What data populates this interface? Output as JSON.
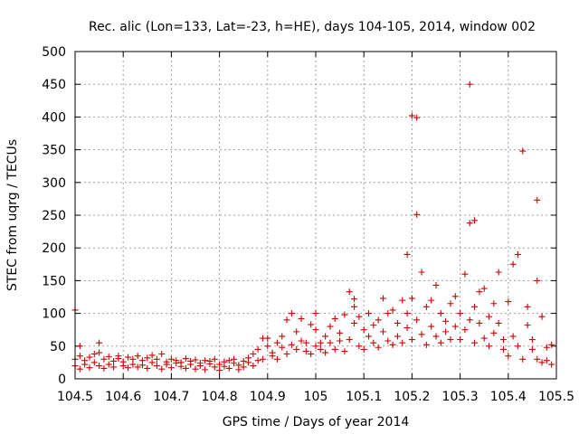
{
  "chart_data": {
    "type": "scatter",
    "title": "Rec. alic (Lon=133, Lat=-23, h=HE), days 104-105, 2014, window 002",
    "xlabel": "GPS time / Days of year 2014",
    "ylabel": "STEC from uqrg / TECUs",
    "xlim": [
      104.5,
      105.5
    ],
    "ylim": [
      0,
      500
    ],
    "xticks": [
      104.5,
      104.6,
      104.7,
      104.8,
      104.9,
      105,
      105.1,
      105.2,
      105.3,
      105.4,
      105.5
    ],
    "xtick_labels": [
      "104.5",
      "104.6",
      "104.7",
      "104.8",
      "104.9",
      "105",
      "105.1",
      "105.2",
      "105.3",
      "105.4",
      "105.5"
    ],
    "yticks": [
      0,
      50,
      100,
      150,
      200,
      250,
      300,
      350,
      400,
      450,
      500
    ],
    "ytick_labels": [
      "0",
      "50",
      "100",
      "150",
      "200",
      "250",
      "300",
      "350",
      "400",
      "450",
      "500"
    ],
    "grid": true,
    "marker": "+",
    "color": "#d00000",
    "series": [
      {
        "points": [
          [
            104.5,
            105
          ],
          [
            104.5,
            30
          ],
          [
            104.5,
            20
          ],
          [
            104.51,
            35
          ],
          [
            104.51,
            15
          ],
          [
            104.51,
            50
          ],
          [
            104.52,
            28
          ],
          [
            104.52,
            22
          ],
          [
            104.53,
            33
          ],
          [
            104.53,
            17
          ],
          [
            104.54,
            38
          ],
          [
            104.54,
            25
          ],
          [
            104.55,
            20
          ],
          [
            104.55,
            40
          ],
          [
            104.55,
            55
          ],
          [
            104.56,
            30
          ],
          [
            104.56,
            16
          ],
          [
            104.57,
            34
          ],
          [
            104.57,
            22
          ],
          [
            104.58,
            27
          ],
          [
            104.58,
            18
          ],
          [
            104.59,
            31
          ],
          [
            104.59,
            35
          ],
          [
            104.6,
            20
          ],
          [
            104.6,
            26
          ],
          [
            104.61,
            33
          ],
          [
            104.61,
            17
          ],
          [
            104.62,
            30
          ],
          [
            104.62,
            22
          ],
          [
            104.63,
            35
          ],
          [
            104.63,
            18
          ],
          [
            104.64,
            28
          ],
          [
            104.64,
            21
          ],
          [
            104.65,
            32
          ],
          [
            104.65,
            16
          ],
          [
            104.66,
            36
          ],
          [
            104.66,
            25
          ],
          [
            104.67,
            20
          ],
          [
            104.67,
            30
          ],
          [
            104.68,
            38
          ],
          [
            104.68,
            15
          ],
          [
            104.69,
            26
          ],
          [
            104.69,
            22
          ],
          [
            104.7,
            30
          ],
          [
            104.7,
            17
          ],
          [
            104.71,
            24
          ],
          [
            104.71,
            28
          ],
          [
            104.72,
            19
          ],
          [
            104.72,
            25
          ],
          [
            104.73,
            31
          ],
          [
            104.73,
            16
          ],
          [
            104.74,
            27
          ],
          [
            104.74,
            22
          ],
          [
            104.75,
            29
          ],
          [
            104.75,
            15
          ],
          [
            104.76,
            24
          ],
          [
            104.76,
            20
          ],
          [
            104.77,
            28
          ],
          [
            104.77,
            14
          ],
          [
            104.78,
            23
          ],
          [
            104.78,
            27
          ],
          [
            104.79,
            18
          ],
          [
            104.79,
            30
          ],
          [
            104.8,
            22
          ],
          [
            104.8,
            13
          ],
          [
            104.81,
            26
          ],
          [
            104.81,
            19
          ],
          [
            104.82,
            28
          ],
          [
            104.82,
            16
          ],
          [
            104.83,
            24
          ],
          [
            104.83,
            30
          ],
          [
            104.84,
            14
          ],
          [
            104.84,
            21
          ],
          [
            104.85,
            27
          ],
          [
            104.85,
            18
          ],
          [
            104.86,
            32
          ],
          [
            104.86,
            25
          ],
          [
            104.87,
            20
          ],
          [
            104.87,
            38
          ],
          [
            104.88,
            28
          ],
          [
            104.88,
            45
          ],
          [
            104.89,
            62
          ],
          [
            104.89,
            30
          ],
          [
            104.9,
            50
          ],
          [
            104.9,
            62
          ],
          [
            104.91,
            35
          ],
          [
            104.91,
            40
          ],
          [
            104.92,
            55
          ],
          [
            104.92,
            30
          ],
          [
            104.93,
            48
          ],
          [
            104.93,
            65
          ],
          [
            104.94,
            90
          ],
          [
            104.94,
            38
          ],
          [
            104.95,
            52
          ],
          [
            104.95,
            100
          ],
          [
            104.96,
            45
          ],
          [
            104.96,
            72
          ],
          [
            104.97,
            58
          ],
          [
            104.97,
            92
          ],
          [
            104.98,
            42
          ],
          [
            104.98,
            55
          ],
          [
            104.99,
            83
          ],
          [
            104.99,
            38
          ],
          [
            105,
            50
          ],
          [
            105,
            75
          ],
          [
            105,
            100
          ],
          [
            105.01,
            55
          ],
          [
            105.01,
            45
          ],
          [
            105.02,
            65
          ],
          [
            105.02,
            40
          ],
          [
            105.03,
            80
          ],
          [
            105.03,
            55
          ],
          [
            105.04,
            92
          ],
          [
            105.04,
            45
          ],
          [
            105.05,
            70
          ],
          [
            105.05,
            58
          ],
          [
            105.06,
            98
          ],
          [
            105.06,
            42
          ],
          [
            105.07,
            133
          ],
          [
            105.07,
            60
          ],
          [
            105.08,
            122
          ],
          [
            105.08,
            85
          ],
          [
            105.08,
            110
          ],
          [
            105.09,
            50
          ],
          [
            105.09,
            95
          ],
          [
            105.1,
            75
          ],
          [
            105.1,
            45
          ],
          [
            105.11,
            65
          ],
          [
            105.11,
            100
          ],
          [
            105.12,
            82
          ],
          [
            105.12,
            55
          ],
          [
            105.13,
            90
          ],
          [
            105.13,
            48
          ],
          [
            105.14,
            123
          ],
          [
            105.14,
            72
          ],
          [
            105.15,
            58
          ],
          [
            105.15,
            100
          ],
          [
            105.16,
            105
          ],
          [
            105.16,
            52
          ],
          [
            105.17,
            85
          ],
          [
            105.17,
            65
          ],
          [
            105.18,
            120
          ],
          [
            105.18,
            55
          ],
          [
            105.19,
            190
          ],
          [
            105.19,
            78
          ],
          [
            105.19,
            100
          ],
          [
            105.2,
            402
          ],
          [
            105.2,
            123
          ],
          [
            105.2,
            60
          ],
          [
            105.21,
            399
          ],
          [
            105.21,
            251
          ],
          [
            105.21,
            90
          ],
          [
            105.22,
            163
          ],
          [
            105.22,
            68
          ],
          [
            105.23,
            110
          ],
          [
            105.23,
            52
          ],
          [
            105.24,
            120
          ],
          [
            105.24,
            80
          ],
          [
            105.25,
            143
          ],
          [
            105.25,
            65
          ],
          [
            105.26,
            100
          ],
          [
            105.26,
            55
          ],
          [
            105.27,
            88
          ],
          [
            105.27,
            72
          ],
          [
            105.28,
            115
          ],
          [
            105.28,
            60
          ],
          [
            105.29,
            126
          ],
          [
            105.29,
            80
          ],
          [
            105.3,
            60
          ],
          [
            105.3,
            100
          ],
          [
            105.31,
            160
          ],
          [
            105.31,
            75
          ],
          [
            105.32,
            450
          ],
          [
            105.32,
            238
          ],
          [
            105.32,
            90
          ],
          [
            105.33,
            242
          ],
          [
            105.33,
            110
          ],
          [
            105.33,
            55
          ],
          [
            105.34,
            133
          ],
          [
            105.34,
            85
          ],
          [
            105.35,
            138
          ],
          [
            105.35,
            62
          ],
          [
            105.36,
            95
          ],
          [
            105.36,
            50
          ],
          [
            105.37,
            115
          ],
          [
            105.37,
            70
          ],
          [
            105.38,
            163
          ],
          [
            105.38,
            85
          ],
          [
            105.39,
            60
          ],
          [
            105.39,
            45
          ],
          [
            105.4,
            118
          ],
          [
            105.4,
            35
          ],
          [
            105.41,
            175
          ],
          [
            105.41,
            65
          ],
          [
            105.42,
            190
          ],
          [
            105.42,
            50
          ],
          [
            105.43,
            348
          ],
          [
            105.43,
            30
          ],
          [
            105.44,
            110
          ],
          [
            105.44,
            82
          ],
          [
            105.45,
            45
          ],
          [
            105.45,
            60
          ],
          [
            105.46,
            273
          ],
          [
            105.46,
            150
          ],
          [
            105.46,
            30
          ],
          [
            105.47,
            25
          ],
          [
            105.47,
            95
          ],
          [
            105.48,
            48
          ],
          [
            105.48,
            28
          ],
          [
            105.49,
            52
          ],
          [
            105.49,
            22
          ]
        ]
      }
    ]
  }
}
